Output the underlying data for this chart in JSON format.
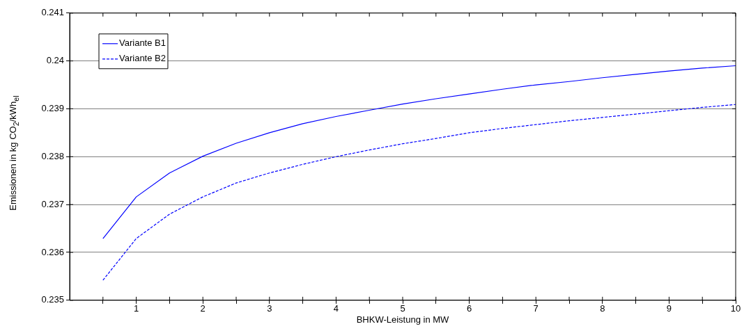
{
  "chart_data": {
    "type": "line",
    "xlabel": "BHKW-Leistung in MW",
    "ylabel": "Emissionen in kg CO$_{2}$/kWh$_{el}$",
    "x": [
      0.5,
      1,
      1.5,
      2,
      2.5,
      3,
      3.5,
      4,
      4.5,
      5,
      5.5,
      6,
      6.5,
      7,
      7.5,
      8,
      8.5,
      9,
      9.5,
      10
    ],
    "series": [
      {
        "name": "Variante B1",
        "color": "#0000ff",
        "line_style": "solid",
        "values": [
          0.23629,
          0.23716,
          0.23766,
          0.23801,
          0.23828,
          0.2385,
          0.23869,
          0.23884,
          0.23897,
          0.2391,
          0.23921,
          0.23931,
          0.23941,
          0.2395,
          0.23957,
          0.23965,
          0.23972,
          0.23979,
          0.23985,
          0.2399
        ]
      },
      {
        "name": "Variante B2",
        "color": "#0000ff",
        "line_style": "dashed",
        "values": [
          0.23542,
          0.23629,
          0.2368,
          0.23716,
          0.23745,
          0.23766,
          0.23784,
          0.238,
          0.23814,
          0.23827,
          0.23838,
          0.2385,
          0.23859,
          0.23867,
          0.23875,
          0.23882,
          0.23889,
          0.23896,
          0.23903,
          0.23909
        ]
      }
    ],
    "xlim": [
      0,
      10
    ],
    "xticks": [
      {
        "value": 0.5,
        "label": null
      },
      1,
      {
        "value": 1.5,
        "label": null
      },
      2,
      {
        "value": 2.5,
        "label": null
      },
      3,
      {
        "value": 3.5,
        "label": null
      },
      4,
      {
        "value": 4.5,
        "label": null
      },
      5,
      {
        "value": 5.5,
        "label": null
      },
      6,
      {
        "value": 6.5,
        "label": null
      },
      7,
      {
        "value": 7.5,
        "label": null
      },
      8,
      {
        "value": 8.5,
        "label": null
      },
      9,
      {
        "value": 9.5,
        "label": null
      },
      10
    ],
    "ylim": [
      0.235,
      0.241
    ],
    "yticks": [
      0.235,
      0.236,
      0.237,
      0.238,
      0.239,
      0.24,
      0.241
    ],
    "grid": "y",
    "legend": "top left",
    "marker": "none"
  }
}
